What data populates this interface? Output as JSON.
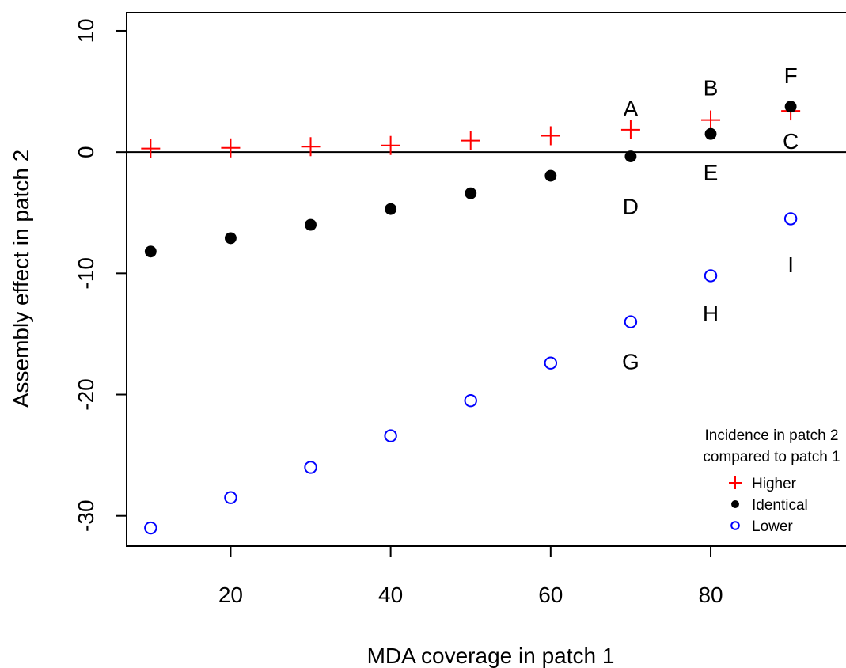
{
  "chart_data": {
    "type": "scatter",
    "xlabel": "MDA coverage in patch 1",
    "ylabel": "Assembly effect in patch 2",
    "xlim": [
      7,
      98
    ],
    "ylim": [
      -32.5,
      11.5
    ],
    "xticks": [
      20,
      40,
      60,
      80
    ],
    "yticks": [
      10,
      0,
      -10,
      -20,
      -30
    ],
    "reference_line_y": 0,
    "series": [
      {
        "name": "Higher",
        "marker": "plus",
        "color": "#ff0000",
        "x": [
          10,
          20,
          30,
          40,
          50,
          60,
          70,
          80,
          90
        ],
        "y": [
          0.3,
          0.35,
          0.45,
          0.55,
          0.95,
          1.35,
          1.85,
          2.65,
          3.4
        ]
      },
      {
        "name": "Identical",
        "marker": "filled-circle",
        "color": "#000000",
        "x": [
          10,
          20,
          30,
          40,
          50,
          60,
          70,
          80,
          90
        ],
        "y": [
          -8.2,
          -7.1,
          -6.0,
          -4.7,
          -3.4,
          -1.95,
          -0.35,
          1.5,
          3.75
        ]
      },
      {
        "name": "Lower",
        "marker": "open-circle",
        "color": "#0000ff",
        "x": [
          10,
          20,
          30,
          40,
          50,
          60,
          70,
          80,
          90
        ],
        "y": [
          -31.0,
          -28.5,
          -26.0,
          -23.4,
          -20.5,
          -17.4,
          -14.0,
          -10.2,
          -5.5
        ]
      }
    ],
    "annotations": [
      {
        "text": "A",
        "x": 70,
        "y": 3.6
      },
      {
        "text": "B",
        "x": 80,
        "y": 5.3
      },
      {
        "text": "F",
        "x": 90,
        "y": 6.3
      },
      {
        "text": "C",
        "x": 90,
        "y": 0.9
      },
      {
        "text": "E",
        "x": 80,
        "y": -1.7
      },
      {
        "text": "D",
        "x": 70,
        "y": -4.5
      },
      {
        "text": "I",
        "x": 90,
        "y": -9.3
      },
      {
        "text": "H",
        "x": 80,
        "y": -13.3
      },
      {
        "text": "G",
        "x": 70,
        "y": -17.3
      }
    ],
    "legend": {
      "title_line1": "Incidence in patch 2",
      "title_line2": "compared to patch 1",
      "entries": [
        "Higher",
        "Identical",
        "Lower"
      ],
      "placement": "bottom-right"
    }
  }
}
